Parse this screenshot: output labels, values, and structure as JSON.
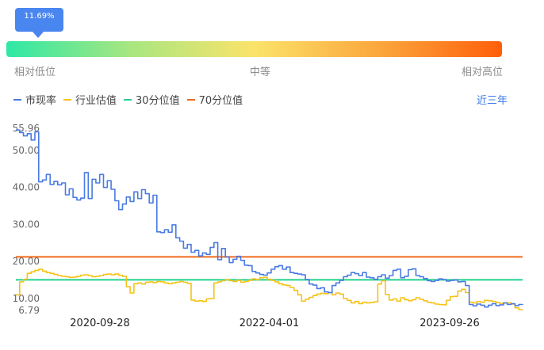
{
  "percentile": {
    "value_label": "11.69%",
    "value": 0.1169,
    "low_label": "相对低位",
    "mid_label": "中等",
    "high_label": "相对高位",
    "gradient_colors": [
      "#2ee8a6",
      "#fbe36a",
      "#ff5e0a"
    ]
  },
  "range_toggle": "近三年",
  "chart_data": {
    "type": "line",
    "x_ticks": [
      "2020-09-28",
      "2022-04-01",
      "2023-09-26"
    ],
    "y_ticks": [
      6.79,
      10.0,
      20.0,
      30.0,
      40.0,
      50.0,
      55.96
    ],
    "ylim": [
      6.79,
      55.96
    ],
    "grid": false,
    "legend_position": "top-left",
    "series": [
      {
        "name": "市现率",
        "color": "#4a7be4",
        "values": [
          55.5,
          54.8,
          53.9,
          54.5,
          52.8,
          55.0,
          41.5,
          42.0,
          43.5,
          40.8,
          41.6,
          40.7,
          41.2,
          38.0,
          39.6,
          37.3,
          36.6,
          37.1,
          44.0,
          37.0,
          42.2,
          41.2,
          43.5,
          40.0,
          41.8,
          39.5,
          36.4,
          34.0,
          35.5,
          37.4,
          36.2,
          38.8,
          37.0,
          39.4,
          38.3,
          35.8,
          37.9,
          28.0,
          27.8,
          28.6,
          27.9,
          29.9,
          26.4,
          25.5,
          23.6,
          24.6,
          22.5,
          23.0,
          21.5,
          22.3,
          21.9,
          23.8,
          25.1,
          20.5,
          23.5,
          21.2,
          19.7,
          20.6,
          21.4,
          20.3,
          19.0,
          18.9,
          17.3,
          16.9,
          16.5,
          16.3,
          16.9,
          17.9,
          18.6,
          18.9,
          17.9,
          18.5,
          17.0,
          16.8,
          16.6,
          16.4,
          15.1,
          13.9,
          13.6,
          12.7,
          12.9,
          11.8,
          11.6,
          13.5,
          14.2,
          14.9,
          15.9,
          16.3,
          17.0,
          16.7,
          16.2,
          17.0,
          15.8,
          15.6,
          15.2,
          15.9,
          16.4,
          15.5,
          16.2,
          17.6,
          17.9,
          15.6,
          16.0,
          17.8,
          18.0,
          16.2,
          15.9,
          15.4,
          14.8,
          14.6,
          14.9,
          15.3,
          15.1,
          14.7,
          14.9,
          15.0,
          14.5,
          14.6,
          13.5,
          8.4,
          8.0,
          8.5,
          8.2,
          7.7,
          8.2,
          8.6,
          8.1,
          8.3,
          8.8,
          8.4,
          8.6,
          8.1,
          8.4,
          8.3
        ],
        "highlight_dates_note": ""
      },
      {
        "name": "行业估值",
        "color": "#f6c218",
        "values": [
          11.0,
          14.5,
          15.2,
          16.8,
          17.2,
          17.6,
          17.9,
          17.4,
          17.0,
          16.8,
          16.5,
          16.2,
          16.0,
          15.9,
          15.7,
          15.8,
          16.0,
          16.3,
          16.4,
          16.2,
          15.9,
          16.0,
          16.2,
          16.5,
          16.6,
          16.4,
          16.6,
          16.3,
          16.0,
          13.2,
          11.5,
          14.0,
          14.2,
          13.9,
          14.4,
          14.5,
          14.3,
          14.6,
          14.5,
          14.2,
          14.0,
          14.2,
          14.4,
          14.6,
          14.4,
          14.1,
          9.6,
          9.3,
          9.4,
          9.2,
          9.9,
          10.0,
          14.2,
          14.5,
          14.8,
          15.1,
          14.8,
          14.6,
          14.9,
          14.4,
          14.6,
          14.9,
          15.3,
          15.1,
          15.6,
          15.7,
          15.2,
          14.9,
          14.5,
          14.0,
          13.7,
          13.5,
          13.0,
          12.2,
          11.0,
          9.3,
          9.8,
          10.3,
          10.8,
          11.2,
          11.4,
          11.3,
          11.6,
          11.0,
          11.5,
          11.2,
          10.0,
          9.5,
          8.8,
          9.2,
          8.6,
          9.0,
          8.8,
          8.9,
          9.1,
          13.9,
          14.8,
          11.1,
          9.6,
          9.9,
          9.3,
          10.2,
          9.7,
          9.4,
          9.7,
          10.2,
          9.8,
          9.4,
          9.0,
          8.8,
          8.5,
          8.4,
          8.3,
          9.5,
          10.5,
          10.6,
          12.0,
          12.5,
          11.6,
          9.0,
          8.8,
          9.2,
          9.0,
          9.5,
          9.4,
          9.2,
          8.9,
          8.7,
          8.8,
          8.8,
          8.5,
          7.5,
          7.0,
          6.9
        ]
      },
      {
        "name": "30分位值",
        "color": "#22d18e",
        "values": [
          15.05
        ]
      },
      {
        "name": "70分位值",
        "color": "#f16a1c",
        "values": [
          21.25
        ]
      }
    ]
  }
}
